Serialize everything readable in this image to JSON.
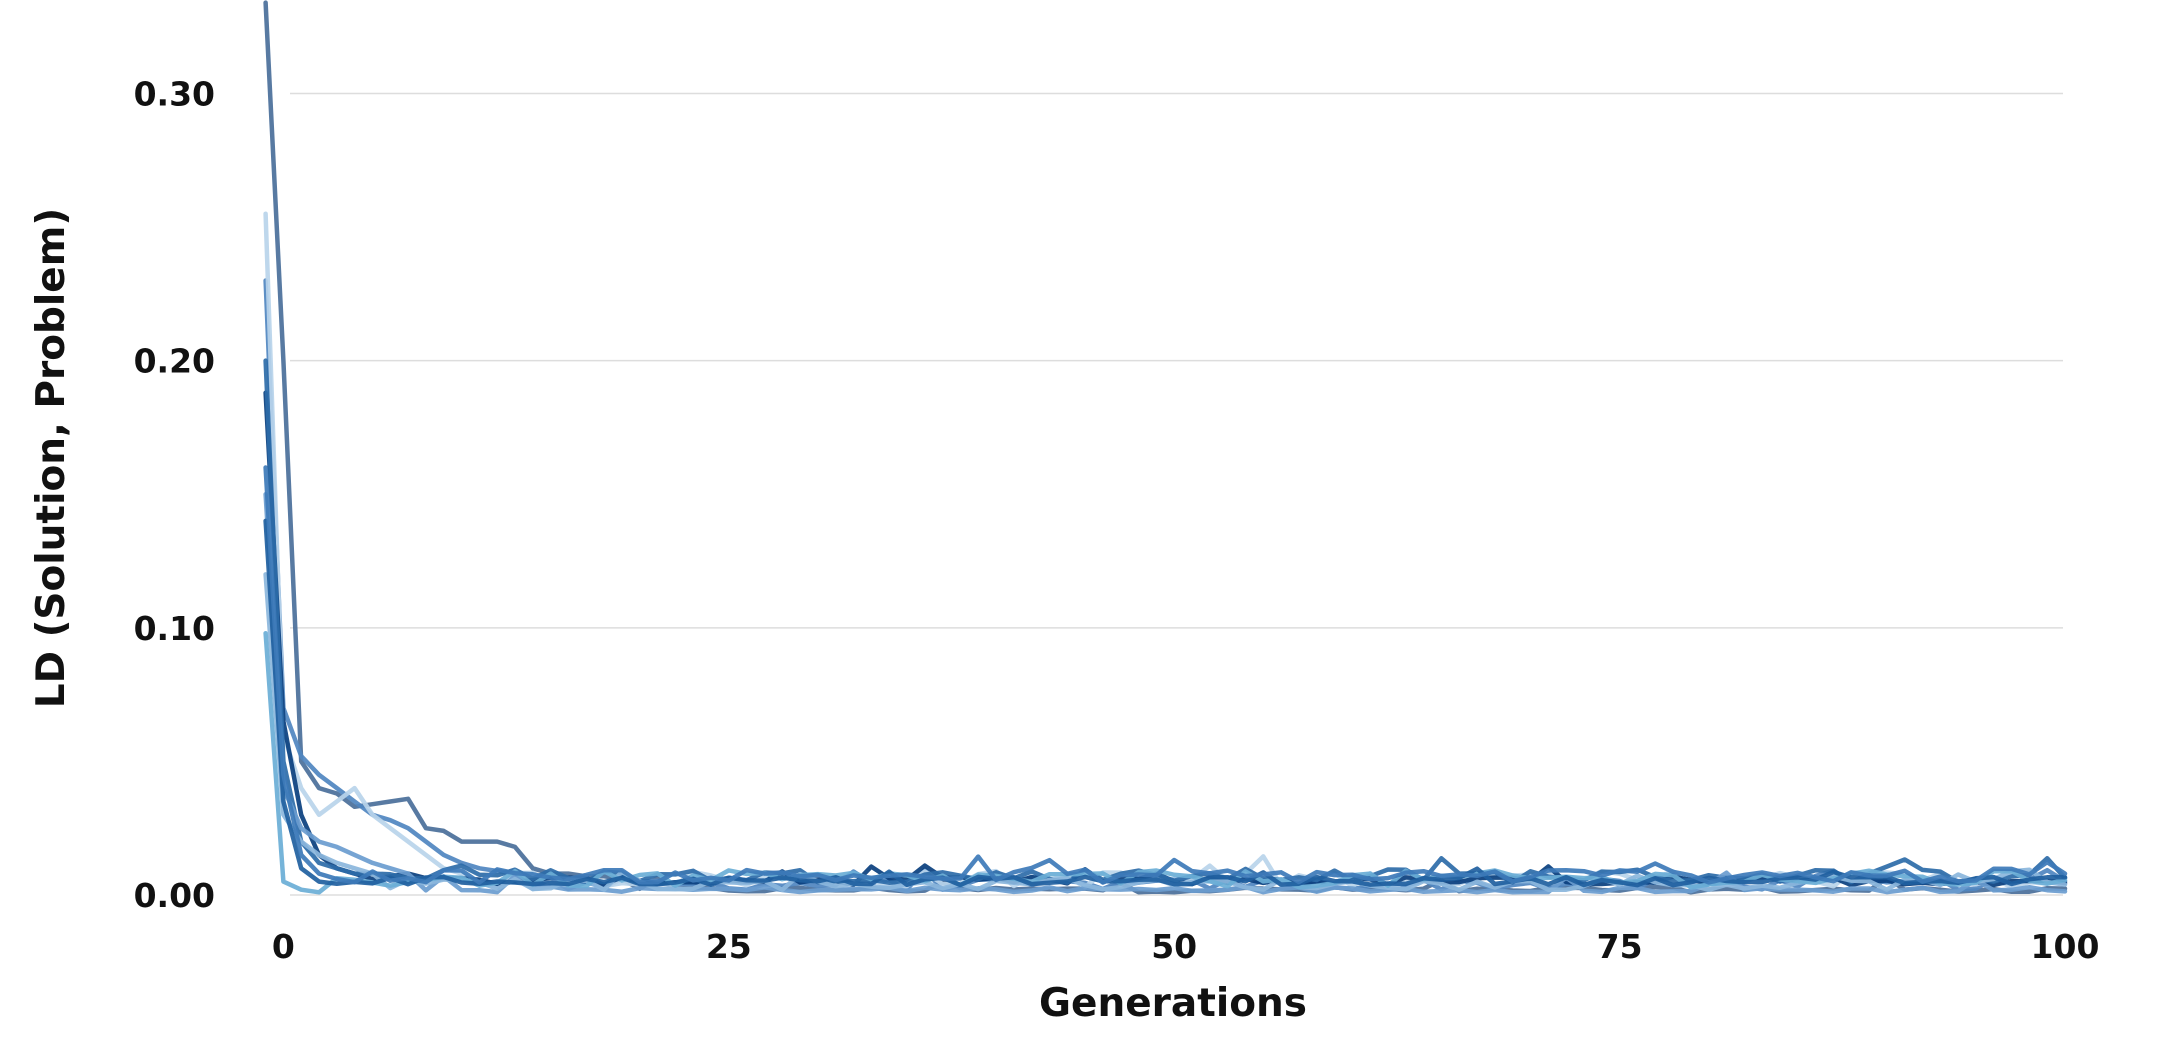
{
  "chart_data": {
    "type": "line",
    "title": "",
    "xlabel": "Generations",
    "ylabel": "LD (Solution, Problem)",
    "xlim": [
      -1.2,
      100
    ],
    "ylim": [
      0,
      0.32
    ],
    "xticks": [
      0,
      25,
      50,
      75,
      100
    ],
    "xtick_labels": [
      "0",
      "25",
      "50",
      "75",
      "100"
    ],
    "yticks": [
      0.0,
      0.1,
      0.2,
      0.3
    ],
    "ytick_labels": [
      "0.00",
      "0.10",
      "0.20",
      "0.30"
    ],
    "grid": "horizontal",
    "legend": "none",
    "x_start": -1,
    "x_end": 100,
    "series": [
      {
        "color": "#4a6f9a",
        "values": [
          0.334,
          0.2,
          0.05,
          0.04,
          0.038,
          0.033,
          0.034,
          0.035,
          0.036,
          0.025,
          0.024,
          0.02,
          0.02,
          0.02,
          0.018,
          0.01,
          0.008,
          0.008,
          0.007,
          0.007,
          0.006
        ]
      },
      {
        "color": "#4f86c0",
        "values": [
          0.23,
          0.07,
          0.052,
          0.045,
          0.04,
          0.035,
          0.03,
          0.028,
          0.025,
          0.02,
          0.015,
          0.012,
          0.01,
          0.009,
          0.008
        ]
      },
      {
        "color": "#b8d4ea",
        "values": [
          0.255,
          0.06,
          0.04,
          0.03,
          0.035,
          0.04,
          0.03,
          0.025,
          0.02,
          0.015,
          0.01,
          0.008
        ]
      },
      {
        "color": "#0a3f7e",
        "values": [
          0.188,
          0.065,
          0.03,
          0.015,
          0.01,
          0.008,
          0.006,
          0.007,
          0.008
        ]
      },
      {
        "color": "#2c6ba8",
        "values": [
          0.2,
          0.05,
          0.02,
          0.012,
          0.01,
          0.008,
          0.008
        ]
      },
      {
        "color": "#6a9ccf",
        "values": [
          0.15,
          0.04,
          0.025,
          0.02,
          0.018,
          0.015,
          0.012,
          0.01,
          0.008
        ]
      },
      {
        "color": "#8bb6dc",
        "values": [
          0.12,
          0.03,
          0.02,
          0.015,
          0.012,
          0.01,
          0.008
        ]
      },
      {
        "color": "#6aaed6",
        "values": [
          0.098,
          0.005,
          0.002,
          0.001
        ]
      },
      {
        "color": "#1f5f9f",
        "values": [
          0.14,
          0.035,
          0.01,
          0.005
        ]
      },
      {
        "color": "#3d7ab8",
        "values": [
          0.16,
          0.045,
          0.015,
          0.008,
          0.006
        ]
      }
    ]
  }
}
